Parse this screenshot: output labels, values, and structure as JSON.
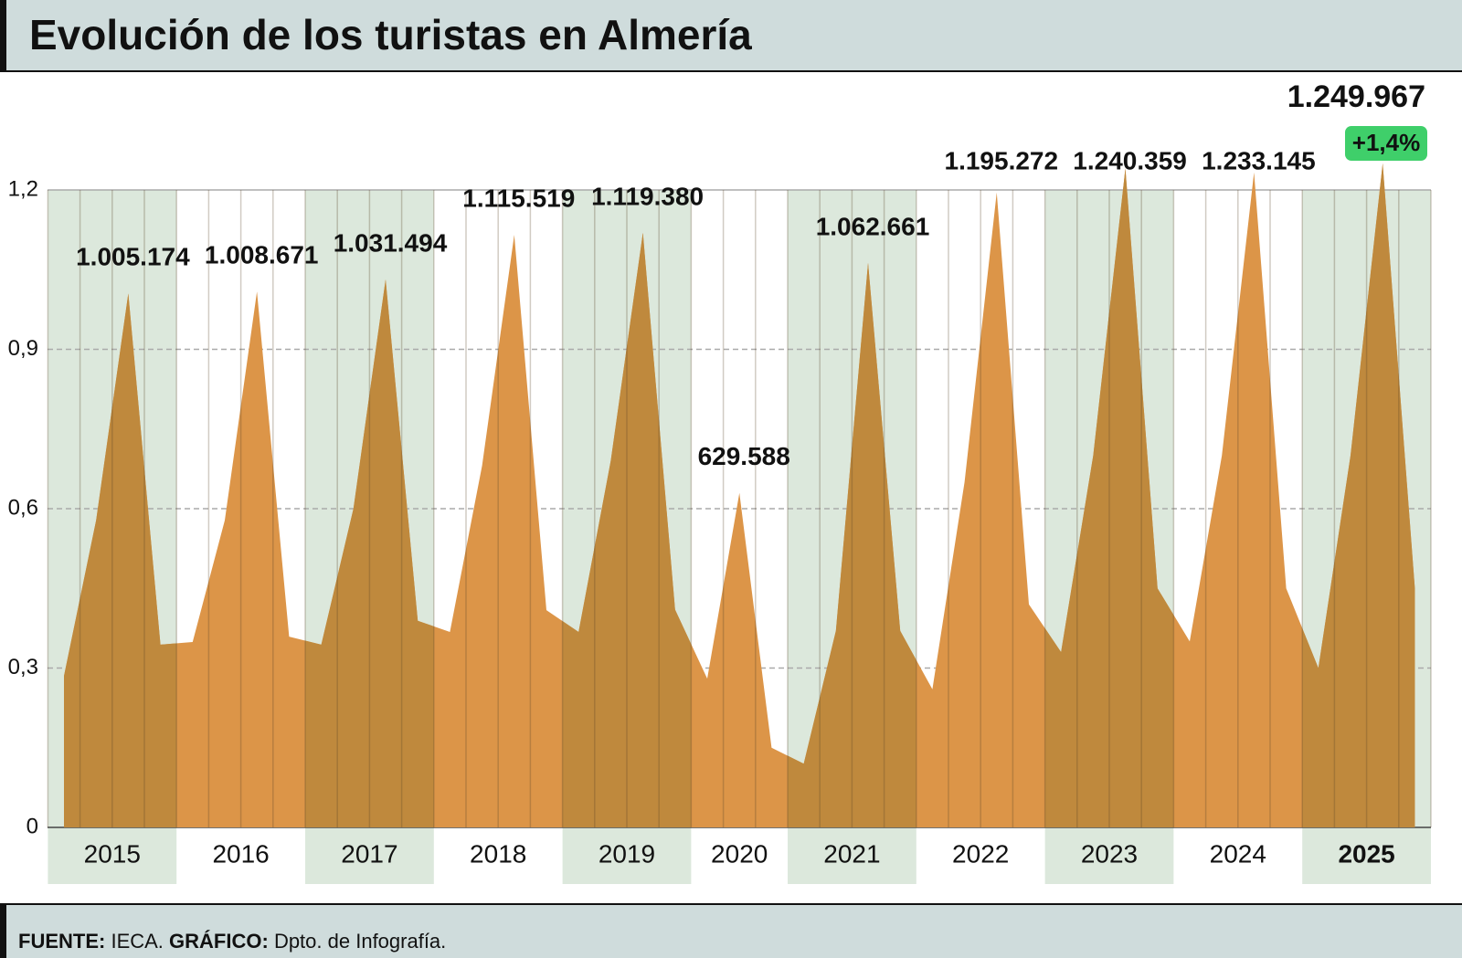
{
  "chart_data": {
    "type": "area",
    "title": "Evolución de los turistas en Almería",
    "categories": [
      "2015",
      null,
      null,
      null,
      "2016",
      null,
      null,
      null,
      "2017",
      null,
      null,
      null,
      "2018",
      null,
      null,
      null,
      "2019",
      null,
      null,
      null,
      "2020",
      null,
      null,
      "2021",
      null,
      null,
      null,
      "2022",
      null,
      null,
      null,
      "2023",
      null,
      null,
      null,
      "2024",
      null,
      null,
      null,
      "2025",
      null,
      null,
      null
    ],
    "values": [
      0.285,
      0.578,
      1.005174,
      0.344,
      0.349,
      0.578,
      1.008671,
      0.359,
      0.344,
      0.6,
      1.031494,
      0.389,
      0.368,
      0.681,
      1.115519,
      0.409,
      0.368,
      0.69,
      1.11938,
      0.41,
      0.28,
      0.629588,
      0.15,
      0.12,
      0.37,
      1.062661,
      0.37,
      0.26,
      0.65,
      1.195272,
      0.42,
      0.33,
      0.7,
      1.240359,
      0.45,
      0.35,
      0.7,
      1.233145,
      0.45,
      0.3,
      0.7,
      1.249967,
      0.45
    ],
    "value_labels": [
      null,
      null,
      "1.005.174",
      null,
      null,
      null,
      "1.008.671",
      null,
      null,
      null,
      "1.031.494",
      null,
      null,
      null,
      "1.115.519",
      null,
      null,
      null,
      "1.119.380",
      null,
      null,
      "629.588",
      null,
      null,
      null,
      "1.062.661",
      null,
      null,
      null,
      "1.195.272",
      null,
      null,
      null,
      "1.240.359",
      null,
      null,
      null,
      "1.233.145",
      null,
      null,
      null,
      "1.249.967",
      null
    ],
    "color": "#dc9548",
    "shade_color": "#bf893d",
    "annotation": "+1,4%",
    "ylim": [
      0,
      1.2
    ],
    "yticks": [
      0,
      {
        "value": 0.3,
        "label": "0,3"
      },
      {
        "value": 0.6,
        "label": "0,6"
      },
      {
        "value": 0.9,
        "label": "0,9"
      },
      {
        "value": 1.2,
        "label": "1,2"
      }
    ],
    "grid": true,
    "source_label": "FUENTE:",
    "source": "IECA.",
    "credit_label": "GRÁFICO:",
    "credit": "Dpto. de Infografía."
  }
}
